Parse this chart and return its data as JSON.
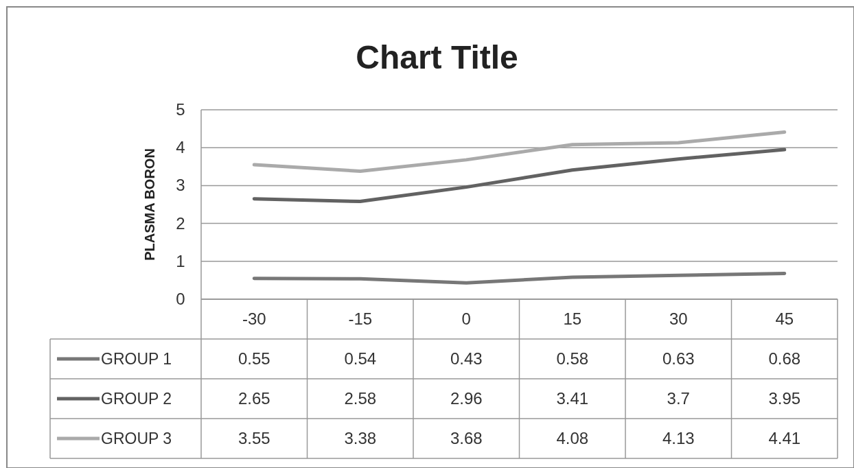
{
  "chart_data": {
    "type": "line",
    "title": "Chart Title",
    "ylabel": "PLASMA BORON",
    "categories": [
      "-30",
      "-15",
      "0",
      "15",
      "30",
      "45"
    ],
    "series": [
      {
        "name": "GROUP 1",
        "color": "#777777",
        "values": [
          0.55,
          0.54,
          0.43,
          0.58,
          0.63,
          0.68
        ]
      },
      {
        "name": "GROUP 2",
        "color": "#626262",
        "values": [
          2.65,
          2.58,
          2.96,
          3.41,
          3.7,
          3.95
        ]
      },
      {
        "name": "GROUP 3",
        "color": "#aaaaaa",
        "values": [
          3.55,
          3.38,
          3.68,
          4.08,
          4.13,
          4.41
        ]
      }
    ],
    "ylim": [
      0,
      5
    ],
    "yticks": [
      0,
      1,
      2,
      3,
      4,
      5
    ],
    "grid": "y",
    "legend": "bottom left",
    "data_labels": true,
    "line_style": "solid"
  }
}
